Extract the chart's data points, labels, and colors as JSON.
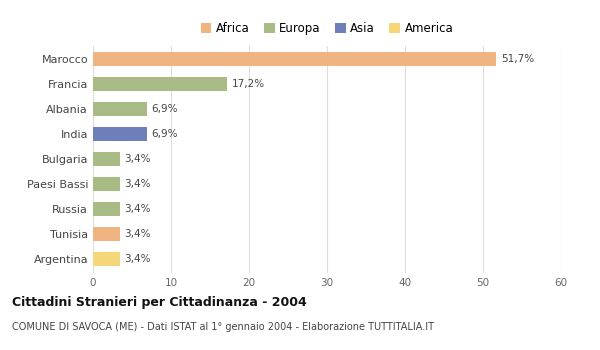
{
  "categories": [
    "Marocco",
    "Francia",
    "Albania",
    "India",
    "Bulgaria",
    "Paesi Bassi",
    "Russia",
    "Tunisia",
    "Argentina"
  ],
  "values": [
    51.7,
    17.2,
    6.9,
    6.9,
    3.4,
    3.4,
    3.4,
    3.4,
    3.4
  ],
  "labels": [
    "51,7%",
    "17,2%",
    "6,9%",
    "6,9%",
    "3,4%",
    "3,4%",
    "3,4%",
    "3,4%",
    "3,4%"
  ],
  "colors": [
    "#f0b482",
    "#a8bb85",
    "#a8bb85",
    "#6e7eb8",
    "#a8bb85",
    "#a8bb85",
    "#a8bb85",
    "#f0b482",
    "#f5d77a"
  ],
  "legend": [
    {
      "label": "Africa",
      "color": "#f0b482"
    },
    {
      "label": "Europa",
      "color": "#a8bb85"
    },
    {
      "label": "Asia",
      "color": "#6e7eb8"
    },
    {
      "label": "America",
      "color": "#f5d77a"
    }
  ],
  "xlim": [
    0,
    60
  ],
  "xticks": [
    0,
    10,
    20,
    30,
    40,
    50,
    60
  ],
  "title": "Cittadini Stranieri per Cittadinanza - 2004",
  "subtitle": "COMUNE DI SAVOCA (ME) - Dati ISTAT al 1° gennaio 2004 - Elaborazione TUTTITALIA.IT",
  "background_color": "#ffffff",
  "grid_color": "#dddddd"
}
